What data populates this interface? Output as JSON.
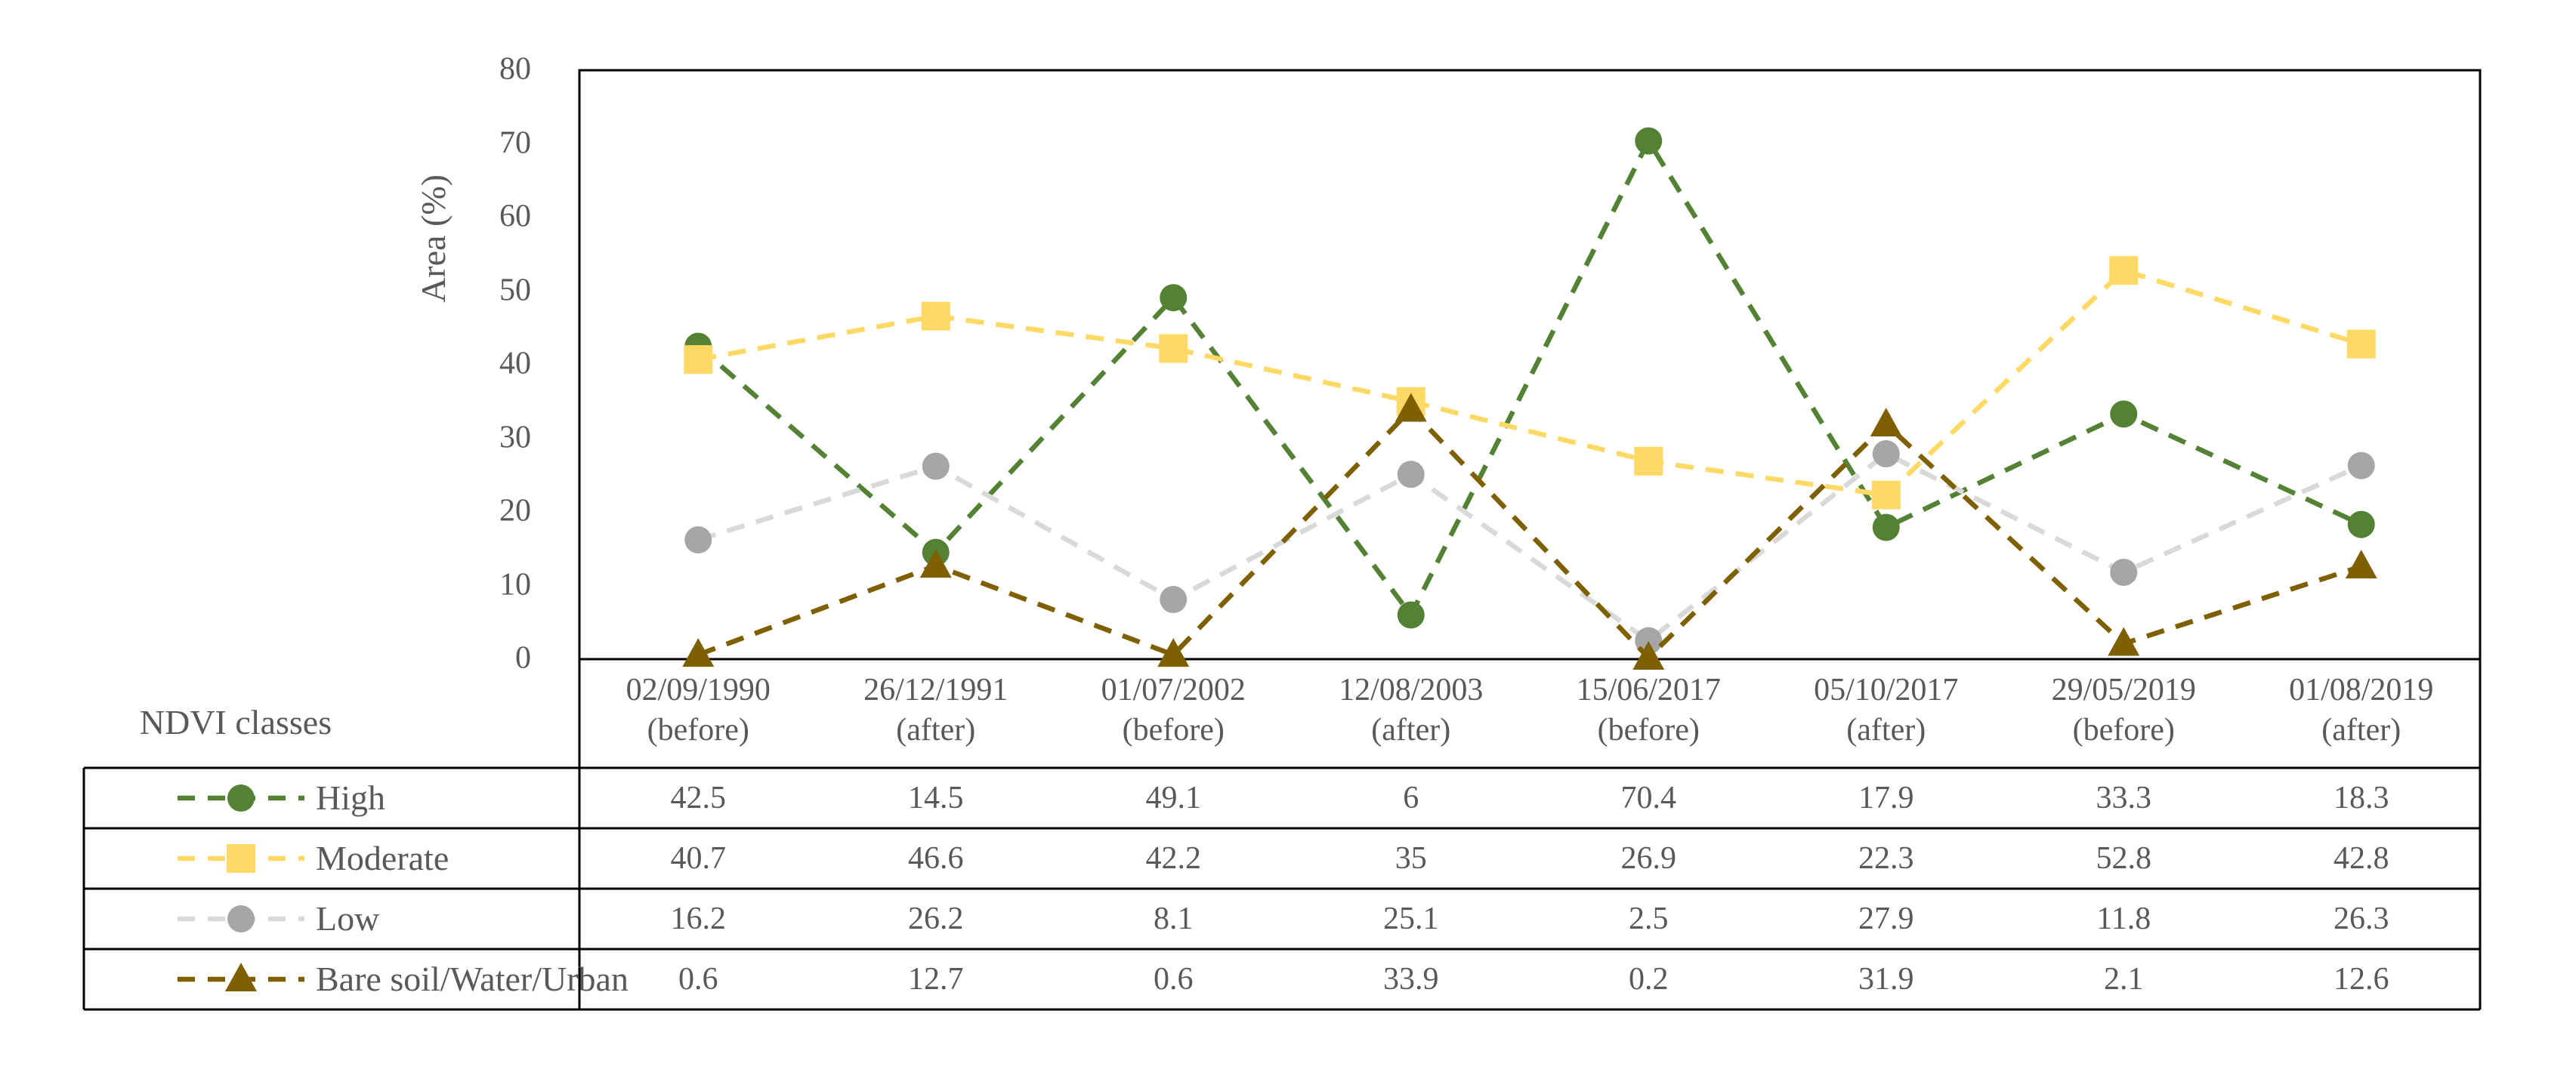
{
  "chart_data": {
    "type": "line",
    "title": "",
    "ylabel": "Area (%)",
    "corner_label": "NDVI classes",
    "ylim": [
      0,
      80
    ],
    "yticks": [
      0,
      10,
      20,
      30,
      40,
      50,
      60,
      70,
      80
    ],
    "grid": false,
    "legend_position": "table-left-column",
    "line_style": "dashed",
    "categories": [
      {
        "date": "02/09/1990",
        "phase": "(before)"
      },
      {
        "date": "26/12/1991",
        "phase": "(after)"
      },
      {
        "date": "01/07/2002",
        "phase": "(before)"
      },
      {
        "date": "12/08/2003",
        "phase": "(after)"
      },
      {
        "date": "15/06/2017",
        "phase": "(before)"
      },
      {
        "date": "05/10/2017",
        "phase": "(after)"
      },
      {
        "date": "29/05/2019",
        "phase": "(before)"
      },
      {
        "date": "01/08/2019",
        "phase": "(after)"
      }
    ],
    "series": [
      {
        "name": "High",
        "marker": "circle",
        "marker_color": "#548235",
        "line_color": "#548235",
        "values": [
          42.5,
          14.5,
          49.1,
          6,
          70.4,
          17.9,
          33.3,
          18.3
        ]
      },
      {
        "name": "Moderate",
        "marker": "square",
        "marker_color": "#FFD966",
        "line_color": "#FFD966",
        "values": [
          40.7,
          46.6,
          42.2,
          35,
          26.9,
          22.3,
          52.8,
          42.8
        ]
      },
      {
        "name": "Low",
        "marker": "circle",
        "marker_color": "#A6A6A6",
        "line_color": "#D9D9D9",
        "values": [
          16.2,
          26.2,
          8.1,
          25.1,
          2.5,
          27.9,
          11.8,
          26.3
        ]
      },
      {
        "name": "Bare soil/Water/Urban",
        "marker": "triangle",
        "marker_color": "#7F6000",
        "line_color": "#7F6000",
        "values": [
          0.6,
          12.7,
          0.6,
          33.9,
          0.2,
          31.9,
          2.1,
          12.6
        ]
      }
    ],
    "colors": {
      "text": "#595959",
      "border": "#000000",
      "background": "#FFFFFF"
    }
  }
}
